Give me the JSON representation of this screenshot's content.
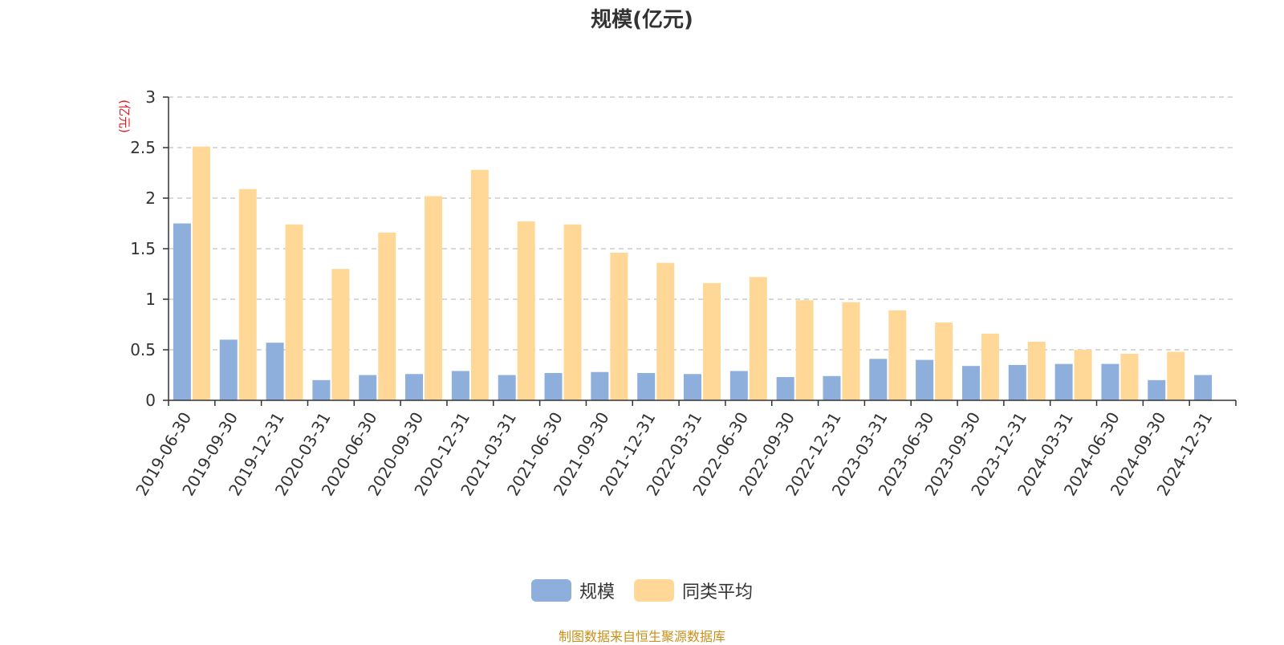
{
  "chart_data": {
    "type": "bar",
    "title": "规模(亿元)",
    "ylabel": "(亿元)",
    "ylim": [
      0,
      3
    ],
    "yticks": [
      "0",
      "0.5",
      "1",
      "1.5",
      "2",
      "2.5",
      "3"
    ],
    "grid": true,
    "legend_position": "bottom",
    "categories": [
      "2019-06-30",
      "2019-09-30",
      "2019-12-31",
      "2020-03-31",
      "2020-06-30",
      "2020-09-30",
      "2020-12-31",
      "2021-03-31",
      "2021-06-30",
      "2021-09-30",
      "2021-12-31",
      "2022-03-31",
      "2022-06-30",
      "2022-09-30",
      "2022-12-31",
      "2023-03-31",
      "2023-06-30",
      "2023-09-30",
      "2023-12-31",
      "2024-03-31",
      "2024-06-30",
      "2024-09-30",
      "2024-12-31"
    ],
    "series": [
      {
        "name": "规模",
        "color": "#8EAEDC",
        "values": [
          1.75,
          0.6,
          0.57,
          0.2,
          0.25,
          0.26,
          0.29,
          0.25,
          0.27,
          0.28,
          0.27,
          0.26,
          0.29,
          0.23,
          0.24,
          0.41,
          0.4,
          0.34,
          0.35,
          0.36,
          0.36,
          0.2,
          0.25
        ]
      },
      {
        "name": "同类平均",
        "color": "#FFD897",
        "values": [
          2.51,
          2.09,
          1.74,
          1.3,
          1.66,
          2.02,
          2.28,
          1.77,
          1.74,
          1.46,
          1.36,
          1.16,
          1.22,
          0.99,
          0.97,
          0.89,
          0.77,
          0.66,
          0.58,
          0.5,
          0.46,
          0.48,
          null
        ]
      }
    ],
    "unit_color": "#E8181C",
    "axis_color": "#333333",
    "grid_color": "#CCCCCC"
  },
  "footer": {
    "source": "制图数据来自恒生聚源数据库",
    "source_color": "#C8901A"
  }
}
